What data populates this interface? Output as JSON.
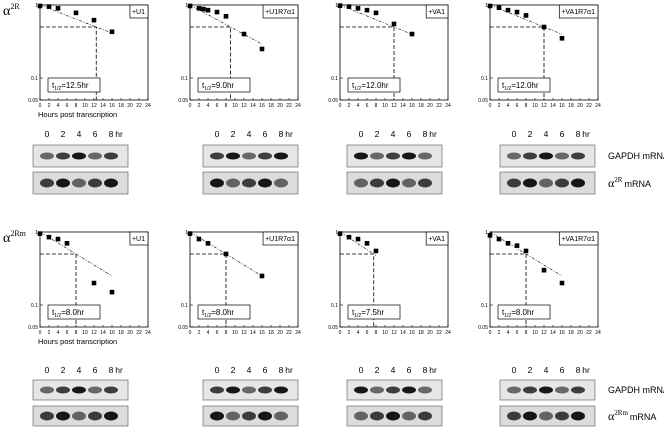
{
  "chart_data": [
    {
      "type": "scatter",
      "label": "+U1",
      "xlabel": "Hours post transcription",
      "x": [
        0,
        2,
        4,
        8,
        12,
        16
      ],
      "values": [
        0.97,
        0.95,
        0.9,
        0.78,
        0.62,
        0.43
      ],
      "half_life": 12.5,
      "half_life_label": [
        "t",
        "1/2",
        "=12.5hr"
      ],
      "xlim": [
        0,
        24
      ],
      "xticks": [
        0,
        2,
        4,
        6,
        8,
        10,
        12,
        14,
        16,
        18,
        20,
        22,
        24
      ],
      "ylim": [
        0.05,
        1
      ],
      "yticks": [
        1,
        0.1,
        0.05
      ],
      "log_y": true,
      "color": "#000000"
    },
    {
      "type": "scatter",
      "label": "+U1R7α1",
      "x": [
        0,
        2,
        3,
        4,
        6,
        8,
        12,
        16
      ],
      "values": [
        0.97,
        0.9,
        0.88,
        0.85,
        0.8,
        0.7,
        0.4,
        0.25
      ],
      "half_life": 9.0,
      "half_life_label": [
        "t",
        "1/2",
        "=9.0hr"
      ],
      "xlim": [
        0,
        24
      ],
      "xticks": [
        0,
        2,
        4,
        6,
        8,
        10,
        12,
        14,
        16,
        18,
        20,
        22,
        24
      ],
      "ylim": [
        0.05,
        1
      ],
      "yticks": [
        1,
        0.1,
        0.05
      ],
      "log_y": true,
      "color": "#000000"
    },
    {
      "type": "scatter",
      "label": "+VA1",
      "x": [
        0,
        2,
        4,
        6,
        8,
        12,
        16
      ],
      "values": [
        0.98,
        0.95,
        0.9,
        0.85,
        0.78,
        0.55,
        0.4
      ],
      "half_life": 12.0,
      "half_life_label": [
        "t",
        "1/2",
        "=12.0hr"
      ],
      "xlim": [
        0,
        24
      ],
      "xticks": [
        0,
        2,
        4,
        6,
        8,
        10,
        12,
        14,
        16,
        18,
        20,
        22,
        24
      ],
      "ylim": [
        0.05,
        1
      ],
      "yticks": [
        1,
        0.1,
        0.05
      ],
      "log_y": true,
      "color": "#000000"
    },
    {
      "type": "scatter",
      "label": "+VA1R7α1",
      "x": [
        0,
        2,
        4,
        6,
        8,
        12,
        16
      ],
      "values": [
        0.97,
        0.92,
        0.85,
        0.8,
        0.72,
        0.5,
        0.35
      ],
      "half_life": 12.0,
      "half_life_label": [
        "t",
        "1/2",
        "=12.0hr"
      ],
      "xlim": [
        0,
        24
      ],
      "xticks": [
        0,
        2,
        4,
        6,
        8,
        10,
        12,
        14,
        16,
        18,
        20,
        22,
        24
      ],
      "ylim": [
        0.05,
        1
      ],
      "yticks": [
        1,
        0.1,
        0.05
      ],
      "log_y": true,
      "color": "#000000"
    },
    {
      "type": "scatter",
      "label": "+U1",
      "xlabel": "Hours post transcription",
      "x": [
        0,
        2,
        4,
        6,
        12,
        16
      ],
      "values": [
        0.95,
        0.85,
        0.8,
        0.7,
        0.2,
        0.15
      ],
      "half_life": 8.0,
      "half_life_label": [
        "t",
        "1/2",
        "=8.0hr"
      ],
      "xlim": [
        0,
        24
      ],
      "xticks": [
        0,
        2,
        4,
        6,
        8,
        10,
        12,
        14,
        16,
        18,
        20,
        22,
        24
      ],
      "ylim": [
        0.05,
        1
      ],
      "yticks": [
        1,
        0.1,
        0.05
      ],
      "log_y": true,
      "color": "#000000"
    },
    {
      "type": "scatter",
      "label": "+U1R7α1",
      "x": [
        0,
        2,
        4,
        8,
        16
      ],
      "values": [
        0.95,
        0.8,
        0.7,
        0.5,
        0.25
      ],
      "half_life": 8.0,
      "half_life_label": [
        "t",
        "1/2",
        "=8.0hr"
      ],
      "xlim": [
        0,
        24
      ],
      "xticks": [
        0,
        2,
        4,
        6,
        8,
        10,
        12,
        14,
        16,
        18,
        20,
        22,
        24
      ],
      "ylim": [
        0.05,
        1
      ],
      "yticks": [
        1,
        0.1,
        0.05
      ],
      "log_y": true,
      "color": "#000000"
    },
    {
      "type": "scatter",
      "label": "+VA1",
      "x": [
        0,
        2,
        4,
        6,
        8
      ],
      "values": [
        0.95,
        0.85,
        0.8,
        0.7,
        0.55
      ],
      "half_life": 7.5,
      "half_life_label": [
        "t",
        "1/2",
        "=7.5hr"
      ],
      "xlim": [
        0,
        24
      ],
      "xticks": [
        0,
        2,
        4,
        6,
        8,
        10,
        12,
        14,
        16,
        18,
        20,
        22,
        24
      ],
      "ylim": [
        0.05,
        1
      ],
      "yticks": [
        1,
        0.1,
        0.05
      ],
      "log_y": true,
      "color": "#000000"
    },
    {
      "type": "scatter",
      "label": "+VA1R7α1",
      "x": [
        0,
        2,
        4,
        6,
        8,
        12,
        16
      ],
      "values": [
        0.9,
        0.8,
        0.7,
        0.65,
        0.55,
        0.3,
        0.2
      ],
      "half_life": 8.0,
      "half_life_label": [
        "t",
        "1/2",
        "=8.0hr"
      ],
      "xlim": [
        0,
        24
      ],
      "xticks": [
        0,
        2,
        4,
        6,
        8,
        10,
        12,
        14,
        16,
        18,
        20,
        22,
        24
      ],
      "ylim": [
        0.05,
        1
      ],
      "yticks": [
        1,
        0.1,
        0.05
      ],
      "log_y": true,
      "color": "#000000"
    }
  ],
  "rows": [
    {
      "label": {
        "symbol": "α",
        "sup": "2R"
      },
      "lanes": [
        "0",
        "2",
        "4",
        "6",
        "8"
      ],
      "lane_unit": "hr",
      "gapdh": "GAPDH mRNA",
      "target": {
        "symbol": "α",
        "sup": "2R",
        "suffix": "mRNA"
      }
    },
    {
      "label": {
        "symbol": "α",
        "sup": "2Rm"
      },
      "lanes": [
        "0",
        "2",
        "4",
        "6",
        "8"
      ],
      "lane_unit": "hr",
      "gapdh": "GAPDH  mRNA",
      "target": {
        "symbol": "α",
        "sup": "2Rm",
        "suffix": "mRNA"
      }
    }
  ]
}
